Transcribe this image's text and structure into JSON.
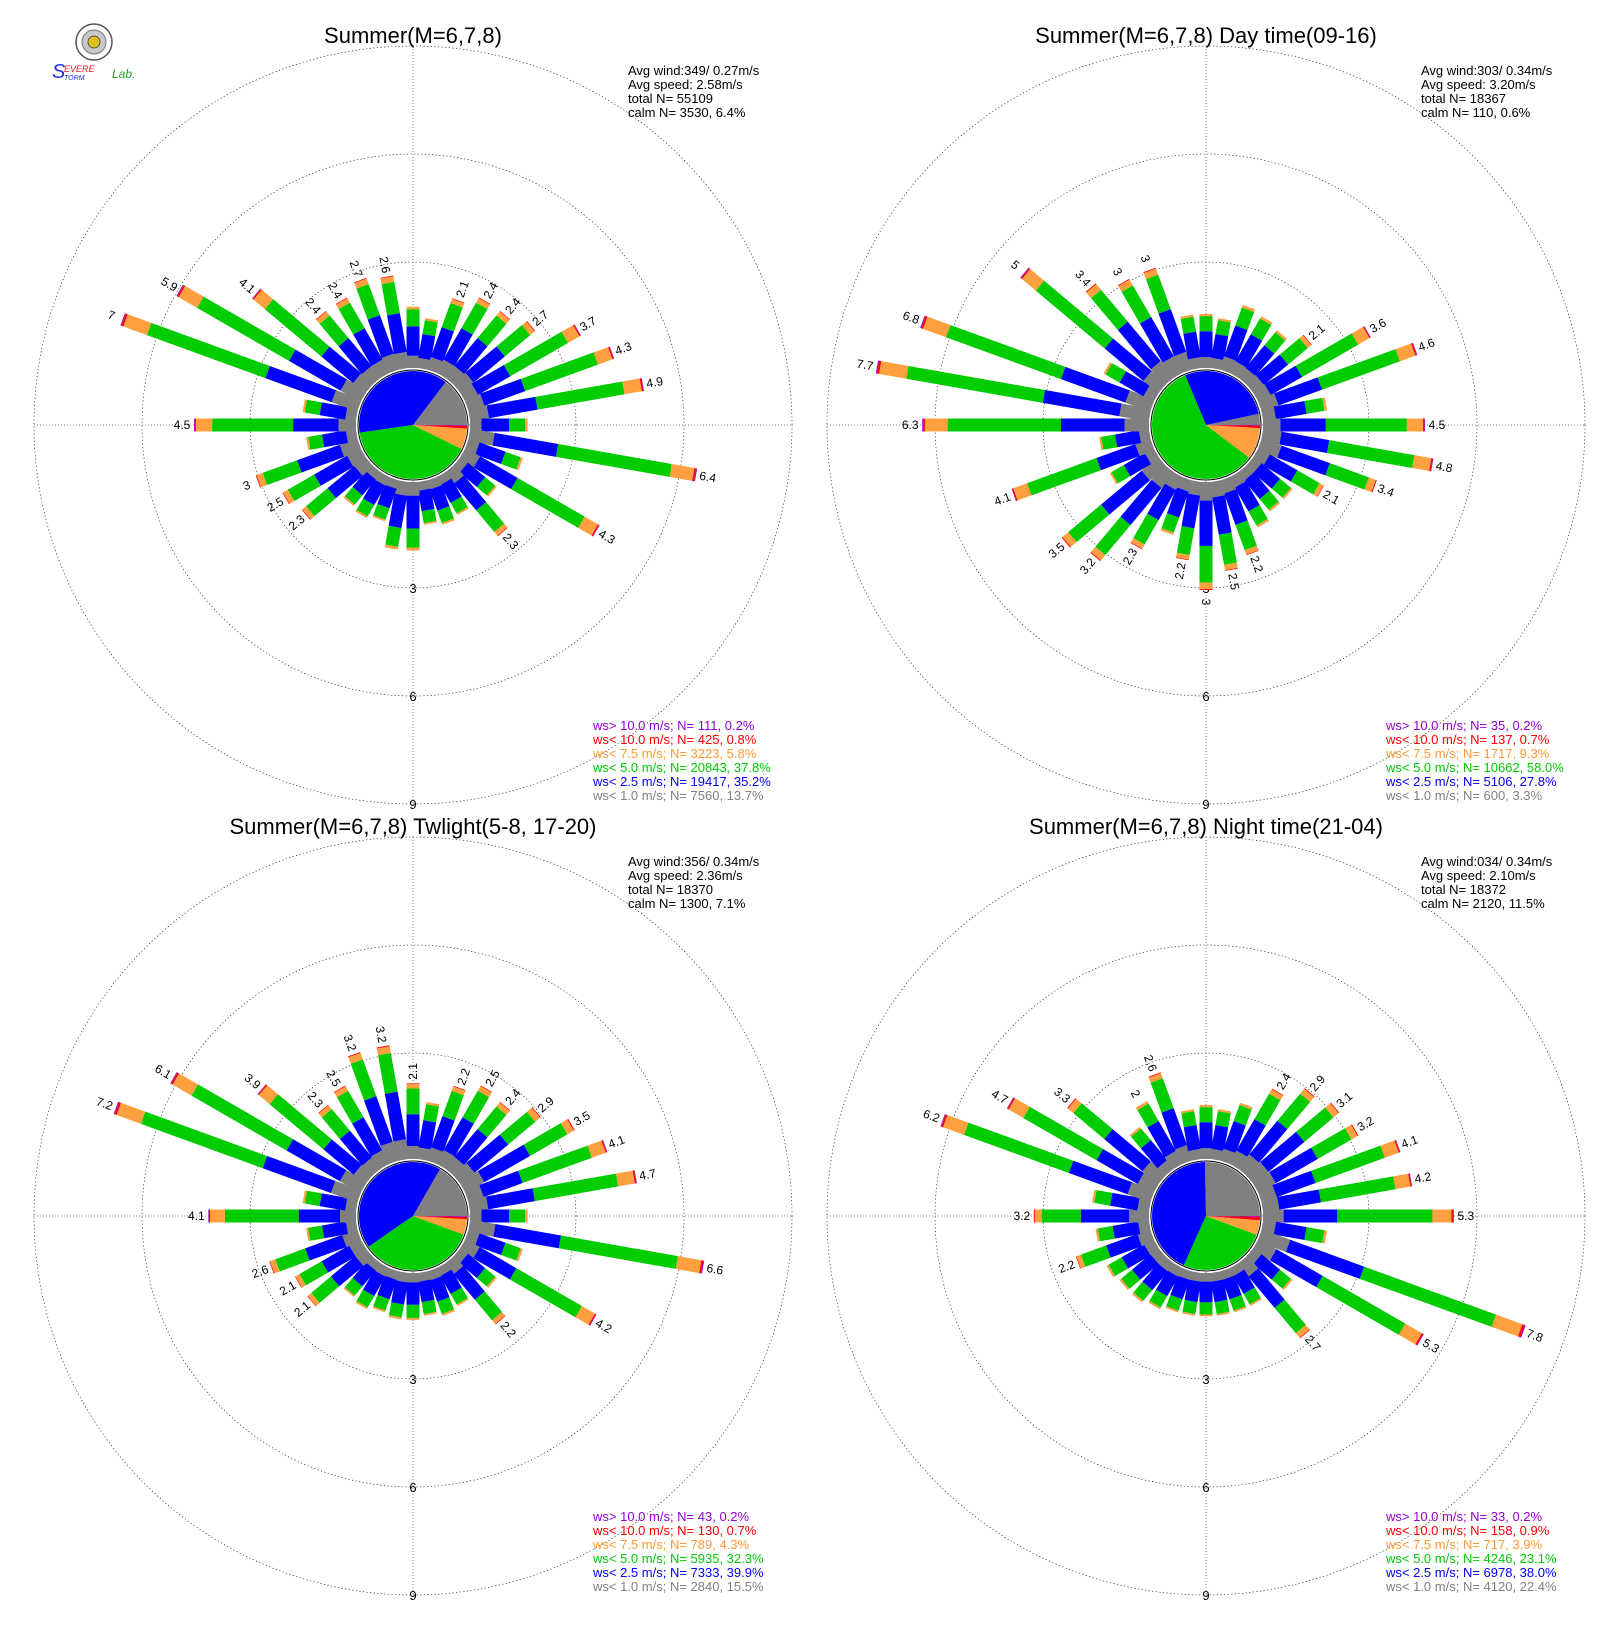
{
  "logo": {
    "text_s": "S",
    "text_severe": "EVERE",
    "text_storm": "TORM",
    "text_lab": "Lab."
  },
  "ring_labels": [
    "3",
    "6",
    "9"
  ],
  "legend_classes": [
    {
      "key": "ws> 10.0 m/s; N=",
      "color": "#9400d3"
    },
    {
      "key": "ws< 10.0 m/s; N=",
      "color": "#ff0000"
    },
    {
      "key": "ws<  7.5 m/s; N=",
      "color": "#ffa040"
    },
    {
      "key": "ws<  5.0 m/s; N=",
      "color": "#00cc00"
    },
    {
      "key": "ws<  2.5 m/s; N=",
      "color": "#0000ff"
    },
    {
      "key": "ws<  1.0 m/s; N=",
      "color": "#808080"
    }
  ],
  "chart_data": [
    {
      "type": "wind-rose",
      "title": "Summer(M=6,7,8)",
      "stats": [
        "Avg wind:349/ 0.27m/s",
        "Avg speed: 2.58m/s",
        "total N=      55109",
        "calm N=   3530,   6.4%"
      ],
      "legend_counts": [
        "  111,  0.2%",
        "  425,  0.8%",
        " 3223,  5.8%",
        "20843, 37.8%",
        "19417, 35.2%",
        " 7560, 13.7%"
      ],
      "rlim": [
        0,
        9
      ],
      "labeled_directions": [
        {
          "dir": 290,
          "value": 7.0
        },
        {
          "dir": 300,
          "value": 5.9
        },
        {
          "dir": 310,
          "value": 4.1
        },
        {
          "dir": 320,
          "value": 2.4
        },
        {
          "dir": 330,
          "value": 2.4
        },
        {
          "dir": 340,
          "value": 2.7
        },
        {
          "dir": 350,
          "value": 2.6
        },
        {
          "dir": 20,
          "value": 2.1
        },
        {
          "dir": 30,
          "value": 2.4
        },
        {
          "dir": 40,
          "value": 2.4
        },
        {
          "dir": 50,
          "value": 2.7
        },
        {
          "dir": 60,
          "value": 3.7
        },
        {
          "dir": 70,
          "value": 4.3
        },
        {
          "dir": 80,
          "value": 4.9
        },
        {
          "dir": 100,
          "value": 6.4
        },
        {
          "dir": 120,
          "value": 4.3
        },
        {
          "dir": 140,
          "value": 2.3
        },
        {
          "dir": 230,
          "value": 2.3
        },
        {
          "dir": 240,
          "value": 2.5
        },
        {
          "dir": 250,
          "value": 3.0
        },
        {
          "dir": 270,
          "value": 4.5
        }
      ],
      "calm_pie": [
        13.7,
        35.2,
        37.8,
        5.8,
        0.8,
        0.2
      ],
      "petals": [
        [
          0,
          1.7
        ],
        [
          10,
          1.4
        ],
        [
          20,
          2.1
        ],
        [
          30,
          2.4
        ],
        [
          40,
          2.4
        ],
        [
          50,
          2.7
        ],
        [
          60,
          3.7
        ],
        [
          70,
          4.3
        ],
        [
          80,
          4.9
        ],
        [
          90,
          1.6
        ],
        [
          100,
          6.4
        ],
        [
          110,
          1.6
        ],
        [
          120,
          4.3
        ],
        [
          130,
          1.3
        ],
        [
          140,
          2.3
        ],
        [
          150,
          1.2
        ],
        [
          160,
          1.3
        ],
        [
          170,
          1.2
        ],
        [
          180,
          1.9
        ],
        [
          190,
          1.9
        ],
        [
          200,
          1.2
        ],
        [
          210,
          1.3
        ],
        [
          220,
          1.2
        ],
        [
          230,
          2.3
        ],
        [
          240,
          2.5
        ],
        [
          250,
          3.0
        ],
        [
          260,
          1.4
        ],
        [
          270,
          4.5
        ],
        [
          280,
          1.5
        ],
        [
          290,
          7.0
        ],
        [
          300,
          5.9
        ],
        [
          310,
          4.1
        ],
        [
          320,
          2.4
        ],
        [
          330,
          2.4
        ],
        [
          340,
          2.7
        ],
        [
          350,
          2.6
        ]
      ]
    },
    {
      "type": "wind-rose",
      "title": "Summer(M=6,7,8) Day time(09-16)",
      "stats": [
        "Avg wind:303/ 0.34m/s",
        "Avg speed: 3.20m/s",
        "total N=      18367",
        "calm N=    110,   0.6%"
      ],
      "legend_counts": [
        "   35,  0.2%",
        "  137,  0.7%",
        " 1717,  9.3%",
        "10662, 58.0%",
        " 5106, 27.8%",
        "  600,  3.3%"
      ],
      "rlim": [
        0,
        9
      ],
      "labeled_directions": [
        {
          "dir": 280,
          "value": 7.7
        },
        {
          "dir": 290,
          "value": 6.8
        },
        {
          "dir": 310,
          "value": 5.0
        },
        {
          "dir": 320,
          "value": 3.4
        },
        {
          "dir": 330,
          "value": 3.0
        },
        {
          "dir": 340,
          "value": 3.0
        },
        {
          "dir": 50,
          "value": 2.1
        },
        {
          "dir": 60,
          "value": 3.6
        },
        {
          "dir": 70,
          "value": 4.6
        },
        {
          "dir": 90,
          "value": 4.5
        },
        {
          "dir": 100,
          "value": 4.8
        },
        {
          "dir": 110,
          "value": 3.4
        },
        {
          "dir": 120,
          "value": 2.1
        },
        {
          "dir": 160,
          "value": 2.2
        },
        {
          "dir": 170,
          "value": 2.5
        },
        {
          "dir": 180,
          "value": 3
        },
        {
          "dir": 190,
          "value": 2.2
        },
        {
          "dir": 210,
          "value": 2.3
        },
        {
          "dir": 220,
          "value": 3.2
        },
        {
          "dir": 230,
          "value": 3.5
        },
        {
          "dir": 250,
          "value": 4.1
        },
        {
          "dir": 270,
          "value": 6.3
        }
      ],
      "calm_pie": [
        3.3,
        27.8,
        58.0,
        9.3,
        0.7,
        0.2
      ],
      "petals": [
        [
          0,
          1.5
        ],
        [
          10,
          1.4
        ],
        [
          20,
          1.9
        ],
        [
          30,
          1.8
        ],
        [
          40,
          1.7
        ],
        [
          50,
          2.1
        ],
        [
          60,
          3.6
        ],
        [
          70,
          4.6
        ],
        [
          80,
          1.8
        ],
        [
          90,
          4.5
        ],
        [
          100,
          4.8
        ],
        [
          110,
          3.4
        ],
        [
          120,
          2.1
        ],
        [
          130,
          1.4
        ],
        [
          140,
          1.4
        ],
        [
          150,
          1.6
        ],
        [
          160,
          2.2
        ],
        [
          170,
          2.5
        ],
        [
          180,
          3
        ],
        [
          190,
          2.2
        ],
        [
          200,
          1.6
        ],
        [
          210,
          2.3
        ],
        [
          220,
          3.2
        ],
        [
          230,
          3.5
        ],
        [
          240,
          1.4
        ],
        [
          250,
          4.1
        ],
        [
          260,
          1.4
        ],
        [
          270,
          6.3
        ],
        [
          280,
          7.7
        ],
        [
          290,
          6.8
        ],
        [
          300,
          1.6
        ],
        [
          310,
          5.0
        ],
        [
          320,
          3.4
        ],
        [
          330,
          3.0
        ],
        [
          340,
          3.0
        ],
        [
          350,
          1.5
        ]
      ]
    },
    {
      "type": "wind-rose",
      "title": "Summer(M=6,7,8) Twlight(5-8, 17-20)",
      "stats": [
        "Avg wind:356/ 0.34m/s",
        "Avg speed: 2.36m/s",
        "total N=      18370",
        "calm N=   1300,   7.1%"
      ],
      "legend_counts": [
        "   43,  0.2%",
        "  130,  0.7%",
        "  789,  4.3%",
        " 5935, 32.3%",
        " 7333, 39.9%",
        " 2840, 15.5%"
      ],
      "rlim": [
        0,
        9
      ],
      "labeled_directions": [
        {
          "dir": 290,
          "value": 7.2
        },
        {
          "dir": 300,
          "value": 6.1
        },
        {
          "dir": 310,
          "value": 3.9
        },
        {
          "dir": 320,
          "value": 2.3
        },
        {
          "dir": 330,
          "value": 2.5
        },
        {
          "dir": 340,
          "value": 3.2
        },
        {
          "dir": 350,
          "value": 3.2
        },
        {
          "dir": 0,
          "value": 2.1
        },
        {
          "dir": 20,
          "value": 2.2
        },
        {
          "dir": 30,
          "value": 2.5
        },
        {
          "dir": 40,
          "value": 2.4
        },
        {
          "dir": 50,
          "value": 2.9
        },
        {
          "dir": 60,
          "value": 3.5
        },
        {
          "dir": 70,
          "value": 4.1
        },
        {
          "dir": 80,
          "value": 4.7
        },
        {
          "dir": 100,
          "value": 6.6
        },
        {
          "dir": 120,
          "value": 4.2
        },
        {
          "dir": 140,
          "value": 2.2
        },
        {
          "dir": 230,
          "value": 2.1
        },
        {
          "dir": 240,
          "value": 2.1
        },
        {
          "dir": 250,
          "value": 2.6
        },
        {
          "dir": 270,
          "value": 4.1
        }
      ],
      "calm_pie": [
        15.5,
        39.9,
        32.3,
        4.3,
        0.7,
        0.2
      ],
      "petals": [
        [
          0,
          2.1
        ],
        [
          10,
          1.6
        ],
        [
          20,
          2.2
        ],
        [
          30,
          2.5
        ],
        [
          40,
          2.4
        ],
        [
          50,
          2.9
        ],
        [
          60,
          3.5
        ],
        [
          70,
          4.1
        ],
        [
          80,
          4.7
        ],
        [
          90,
          1.6
        ],
        [
          100,
          6.6
        ],
        [
          110,
          1.6
        ],
        [
          120,
          4.2
        ],
        [
          130,
          1.3
        ],
        [
          140,
          2.2
        ],
        [
          150,
          1.2
        ],
        [
          160,
          1.3
        ],
        [
          170,
          1.2
        ],
        [
          180,
          1.3
        ],
        [
          190,
          1.3
        ],
        [
          200,
          1.2
        ],
        [
          210,
          1.3
        ],
        [
          220,
          1.2
        ],
        [
          230,
          2.1
        ],
        [
          240,
          2.1
        ],
        [
          250,
          2.6
        ],
        [
          260,
          1.4
        ],
        [
          270,
          4.1
        ],
        [
          280,
          1.5
        ],
        [
          290,
          7.2
        ],
        [
          300,
          6.1
        ],
        [
          310,
          3.9
        ],
        [
          320,
          2.3
        ],
        [
          330,
          2.5
        ],
        [
          340,
          3.2
        ],
        [
          350,
          3.2
        ]
      ]
    },
    {
      "type": "wind-rose",
      "title": "Summer(M=6,7,8) Night time(21-04)",
      "stats": [
        "Avg wind:034/ 0.34m/s",
        "Avg speed: 2.10m/s",
        "total N=      18372",
        "calm N=   2120,  11.5%"
      ],
      "legend_counts": [
        "   33,  0.2%",
        "  158,  0.9%",
        "  717,  3.9%",
        " 4246, 23.1%",
        " 6978, 38.0%",
        " 4120, 22.4%"
      ],
      "rlim": [
        0,
        9
      ],
      "labeled_directions": [
        {
          "dir": 290,
          "value": 6.2
        },
        {
          "dir": 300,
          "value": 4.7
        },
        {
          "dir": 310,
          "value": 3.3
        },
        {
          "dir": 330,
          "value": 2.0
        },
        {
          "dir": 340,
          "value": 2.6
        },
        {
          "dir": 30,
          "value": 2.4
        },
        {
          "dir": 40,
          "value": 2.9
        },
        {
          "dir": 50,
          "value": 3.1
        },
        {
          "dir": 60,
          "value": 3.2
        },
        {
          "dir": 70,
          "value": 4.1
        },
        {
          "dir": 80,
          "value": 4.2
        },
        {
          "dir": 90,
          "value": 5.3
        },
        {
          "dir": 110,
          "value": 7.8
        },
        {
          "dir": 120,
          "value": 5.3
        },
        {
          "dir": 140,
          "value": 2.7
        },
        {
          "dir": 250,
          "value": 2.2
        },
        {
          "dir": 270,
          "value": 3.2
        }
      ],
      "calm_pie": [
        22.4,
        38.0,
        23.1,
        3.9,
        0.9,
        0.2
      ],
      "petals": [
        [
          0,
          1.5
        ],
        [
          10,
          1.4
        ],
        [
          20,
          1.7
        ],
        [
          30,
          2.4
        ],
        [
          40,
          2.9
        ],
        [
          50,
          3.1
        ],
        [
          60,
          3.2
        ],
        [
          70,
          4.1
        ],
        [
          80,
          4.2
        ],
        [
          90,
          5.3
        ],
        [
          100,
          1.8
        ],
        [
          110,
          7.8
        ],
        [
          120,
          5.3
        ],
        [
          130,
          1.4
        ],
        [
          140,
          2.7
        ],
        [
          150,
          1.2
        ],
        [
          160,
          1.2
        ],
        [
          170,
          1.2
        ],
        [
          180,
          1.2
        ],
        [
          190,
          1.2
        ],
        [
          200,
          1.2
        ],
        [
          210,
          1.3
        ],
        [
          220,
          1.4
        ],
        [
          230,
          1.4
        ],
        [
          240,
          1.5
        ],
        [
          250,
          2.2
        ],
        [
          260,
          1.5
        ],
        [
          270,
          3.2
        ],
        [
          280,
          1.6
        ],
        [
          290,
          6.2
        ],
        [
          300,
          4.7
        ],
        [
          310,
          3.3
        ],
        [
          320,
          1.5
        ],
        [
          330,
          2.0
        ],
        [
          340,
          2.6
        ],
        [
          350,
          1.4
        ]
      ]
    }
  ]
}
